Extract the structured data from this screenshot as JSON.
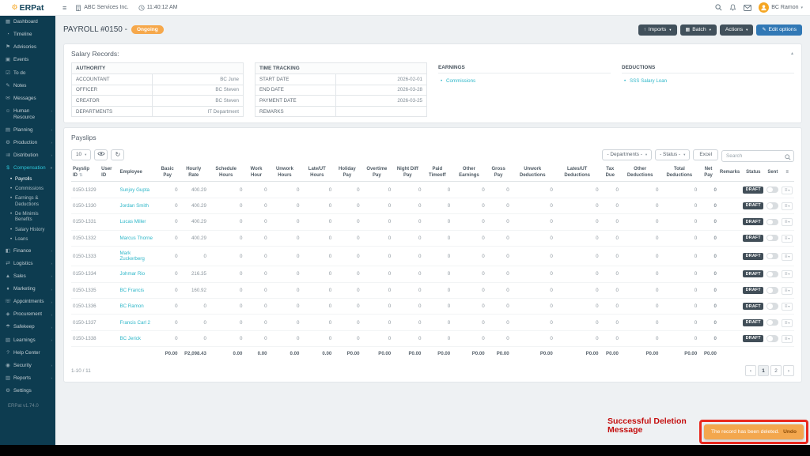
{
  "brand": {
    "gear_glyph": "⚙",
    "text": "ERPat"
  },
  "topbar": {
    "menu_glyph": "≡",
    "company": "ABC Services Inc.",
    "time": "11:40:12 AM",
    "user": "BC Ramon"
  },
  "sidebar": {
    "version": "ERPat v1.74.0",
    "chevron_right_glyph": "›",
    "chevron_down_glyph": "▾",
    "items": [
      {
        "label": "Dashboard",
        "icon": "dashboard-icon",
        "glyph": "▦"
      },
      {
        "label": "Timeline",
        "icon": "timeline-icon",
        "glyph": "◔"
      },
      {
        "label": "Advisories",
        "icon": "advisories-icon",
        "glyph": "⚑"
      },
      {
        "label": "Events",
        "icon": "events-icon",
        "glyph": "▣"
      },
      {
        "label": "To do",
        "icon": "todo-icon",
        "glyph": "☑"
      },
      {
        "label": "Notes",
        "icon": "notes-icon",
        "glyph": "✎"
      },
      {
        "label": "Messages",
        "icon": "messages-icon",
        "glyph": "✉"
      },
      {
        "label": "Human Resource",
        "icon": "human-resource-icon",
        "glyph": "☺",
        "chevron": true
      },
      {
        "label": "Planning",
        "icon": "planning-icon",
        "glyph": "▤",
        "chevron": true
      },
      {
        "label": "Production",
        "icon": "production-icon",
        "glyph": "⚙",
        "chevron": true
      },
      {
        "label": "Distribution",
        "icon": "distribution-icon",
        "glyph": "⇉",
        "chevron": true
      },
      {
        "label": "Compensation",
        "icon": "compensation-icon",
        "glyph": "$",
        "chevron": true,
        "active": true,
        "expanded": true,
        "children": [
          "Payrolls",
          "Commissions",
          "Earnings & Deductions",
          "De Minimis Benefits",
          "Salary History",
          "Loans"
        ],
        "active_child": "Payrolls"
      },
      {
        "label": "Finance",
        "icon": "finance-icon",
        "glyph": "◧",
        "chevron": true
      },
      {
        "label": "Logistics",
        "icon": "logistics-icon",
        "glyph": "⇄",
        "chevron": true
      },
      {
        "label": "Sales",
        "icon": "sales-icon",
        "glyph": "▲",
        "chevron": true
      },
      {
        "label": "Marketing",
        "icon": "marketing-icon",
        "glyph": "♦",
        "chevron": true
      },
      {
        "label": "Appointments",
        "icon": "appointments-icon",
        "glyph": "☏",
        "chevron": true
      },
      {
        "label": "Procurement",
        "icon": "procurement-icon",
        "glyph": "◈",
        "chevron": true
      },
      {
        "label": "Safekeep",
        "icon": "safekeep-icon",
        "glyph": "☂",
        "chevron": true
      },
      {
        "label": "Learnings",
        "icon": "learnings-icon",
        "glyph": "▧",
        "chevron": true
      },
      {
        "label": "Help Center",
        "icon": "help-center-icon",
        "glyph": "?"
      },
      {
        "label": "Security",
        "icon": "security-icon",
        "glyph": "◉",
        "chevron": true
      },
      {
        "label": "Reports",
        "icon": "reports-icon",
        "glyph": "▥",
        "chevron": true
      },
      {
        "label": "Settings",
        "icon": "settings-icon",
        "glyph": "⚙"
      }
    ]
  },
  "page": {
    "title": "PAYROLL #0150 -",
    "status": "Ongoing",
    "imports_icon": "↑",
    "imports_label": "Imports",
    "batch_icon": "▦",
    "batch_label": "Batch",
    "actions_label": "Actions",
    "edit_icon": "✎",
    "edit_label": "Edit options"
  },
  "salary_records": {
    "title": "Salary Records:",
    "collapse_glyph": "▴",
    "authority": {
      "title": "AUTHORITY",
      "rows": [
        [
          "ACCOUNTANT",
          "BC June"
        ],
        [
          "OFFICER",
          "BC Steven"
        ],
        [
          "CREATOR",
          "BC Steven"
        ],
        [
          "DEPARTMENTS",
          "IT Department"
        ]
      ]
    },
    "time_tracking": {
      "title": "TIME TRACKING",
      "rows": [
        [
          "START DATE",
          "2026-02-01"
        ],
        [
          "END DATE",
          "2026-03-28"
        ],
        [
          "PAYMENT DATE",
          "2026-03-25"
        ],
        [
          "REMARKS",
          ""
        ]
      ]
    },
    "earnings": {
      "title": "EARNINGS",
      "items": [
        "Commissions"
      ]
    },
    "deductions": {
      "title": "DEDUCTIONS",
      "items": [
        "SSS Salary Loan"
      ]
    }
  },
  "payslips": {
    "title": "Payslips",
    "page_size": "10",
    "refresh_glyph": "↻",
    "departments_filter": "- Departments -",
    "status_filter": "- Status -",
    "excel_label": "Excel",
    "search_placeholder": "Search",
    "sort_glyph": "⇅",
    "menu_header_glyph": "≡",
    "row_menu_glyph": "≡",
    "columns": [
      "Payslip ID",
      "User ID",
      "Employee",
      "Basic Pay",
      "Hourly Rate",
      "Schedule Hours",
      "Work Hour",
      "Unwork Hours",
      "Late/UT Hours",
      "Holiday Pay",
      "Overtime Pay",
      "Night Diff Pay",
      "Paid Timeoff",
      "Other Earnings",
      "Gross Pay",
      "Unwork Deductions",
      "Lates/UT Deductions",
      "Tax Due",
      "Other Deductions",
      "Total Deductions",
      "Net Pay",
      "Remarks",
      "Status",
      "Sent"
    ],
    "rows": [
      {
        "id": "0150-1329",
        "user_id": "",
        "employee": "Sunjoy Gupta",
        "values": [
          "0",
          "400.29",
          "0",
          "0",
          "0",
          "0",
          "0",
          "0",
          "0",
          "0",
          "0",
          "0",
          "0",
          "0",
          "0",
          "0",
          "0"
        ],
        "net_pay": "0",
        "remarks": "",
        "status": "DRAFT"
      },
      {
        "id": "0150-1330",
        "user_id": "",
        "employee": "Jordan Smith",
        "values": [
          "0",
          "400.29",
          "0",
          "0",
          "0",
          "0",
          "0",
          "0",
          "0",
          "0",
          "0",
          "0",
          "0",
          "0",
          "0",
          "0",
          "0"
        ],
        "net_pay": "0",
        "remarks": "",
        "status": "DRAFT"
      },
      {
        "id": "0150-1331",
        "user_id": "",
        "employee": "Lucas Miller",
        "values": [
          "0",
          "400.29",
          "0",
          "0",
          "0",
          "0",
          "0",
          "0",
          "0",
          "0",
          "0",
          "0",
          "0",
          "0",
          "0",
          "0",
          "0"
        ],
        "net_pay": "0",
        "remarks": "",
        "status": "DRAFT"
      },
      {
        "id": "0150-1332",
        "user_id": "",
        "employee": "Marcus Thorne",
        "values": [
          "0",
          "400.29",
          "0",
          "0",
          "0",
          "0",
          "0",
          "0",
          "0",
          "0",
          "0",
          "0",
          "0",
          "0",
          "0",
          "0",
          "0"
        ],
        "net_pay": "0",
        "remarks": "",
        "status": "DRAFT"
      },
      {
        "id": "0150-1333",
        "user_id": "",
        "employee": "Mark Zuckerberg",
        "values": [
          "0",
          "0",
          "0",
          "0",
          "0",
          "0",
          "0",
          "0",
          "0",
          "0",
          "0",
          "0",
          "0",
          "0",
          "0",
          "0",
          "0"
        ],
        "net_pay": "0",
        "remarks": "",
        "status": "DRAFT"
      },
      {
        "id": "0150-1334",
        "user_id": "",
        "employee": "Johmar Rio",
        "values": [
          "0",
          "216.35",
          "0",
          "0",
          "0",
          "0",
          "0",
          "0",
          "0",
          "0",
          "0",
          "0",
          "0",
          "0",
          "0",
          "0",
          "0"
        ],
        "net_pay": "0",
        "remarks": "",
        "status": "DRAFT"
      },
      {
        "id": "0150-1335",
        "user_id": "",
        "employee": "BC Francis",
        "values": [
          "0",
          "160.92",
          "0",
          "0",
          "0",
          "0",
          "0",
          "0",
          "0",
          "0",
          "0",
          "0",
          "0",
          "0",
          "0",
          "0",
          "0"
        ],
        "net_pay": "0",
        "remarks": "",
        "status": "DRAFT"
      },
      {
        "id": "0150-1336",
        "user_id": "",
        "employee": "BC Ramon",
        "values": [
          "0",
          "0",
          "0",
          "0",
          "0",
          "0",
          "0",
          "0",
          "0",
          "0",
          "0",
          "0",
          "0",
          "0",
          "0",
          "0",
          "0"
        ],
        "net_pay": "0",
        "remarks": "",
        "status": "DRAFT"
      },
      {
        "id": "0150-1337",
        "user_id": "",
        "employee": "Francis Carl 2",
        "values": [
          "0",
          "0",
          "0",
          "0",
          "0",
          "0",
          "0",
          "0",
          "0",
          "0",
          "0",
          "0",
          "0",
          "0",
          "0",
          "0",
          "0"
        ],
        "net_pay": "0",
        "remarks": "",
        "status": "DRAFT"
      },
      {
        "id": "0150-1338",
        "user_id": "",
        "employee": "BC Jerick",
        "values": [
          "0",
          "0",
          "0",
          "0",
          "0",
          "0",
          "0",
          "0",
          "0",
          "0",
          "0",
          "0",
          "0",
          "0",
          "0",
          "0",
          "0"
        ],
        "net_pay": "0",
        "remarks": "",
        "status": "DRAFT"
      }
    ],
    "totals": [
      "P0.00",
      "P2,098.43",
      "0.00",
      "0.00",
      "0.00",
      "0.00",
      "P0.00",
      "P0.00",
      "P0.00",
      "P0.00",
      "P0.00",
      "P0.00",
      "P0.00",
      "P0.00",
      "P0.00",
      "P0.00",
      "P0.00",
      "P0.00"
    ],
    "range_label": "1-10 / 11",
    "pagination": {
      "prev": "‹",
      "pages": [
        "1",
        "2"
      ],
      "active": "1",
      "next": "›"
    }
  },
  "toast": {
    "message": "The record has been deleted.",
    "undo": "Undo"
  },
  "annotation": {
    "label": "Successful Deletion Message"
  }
}
